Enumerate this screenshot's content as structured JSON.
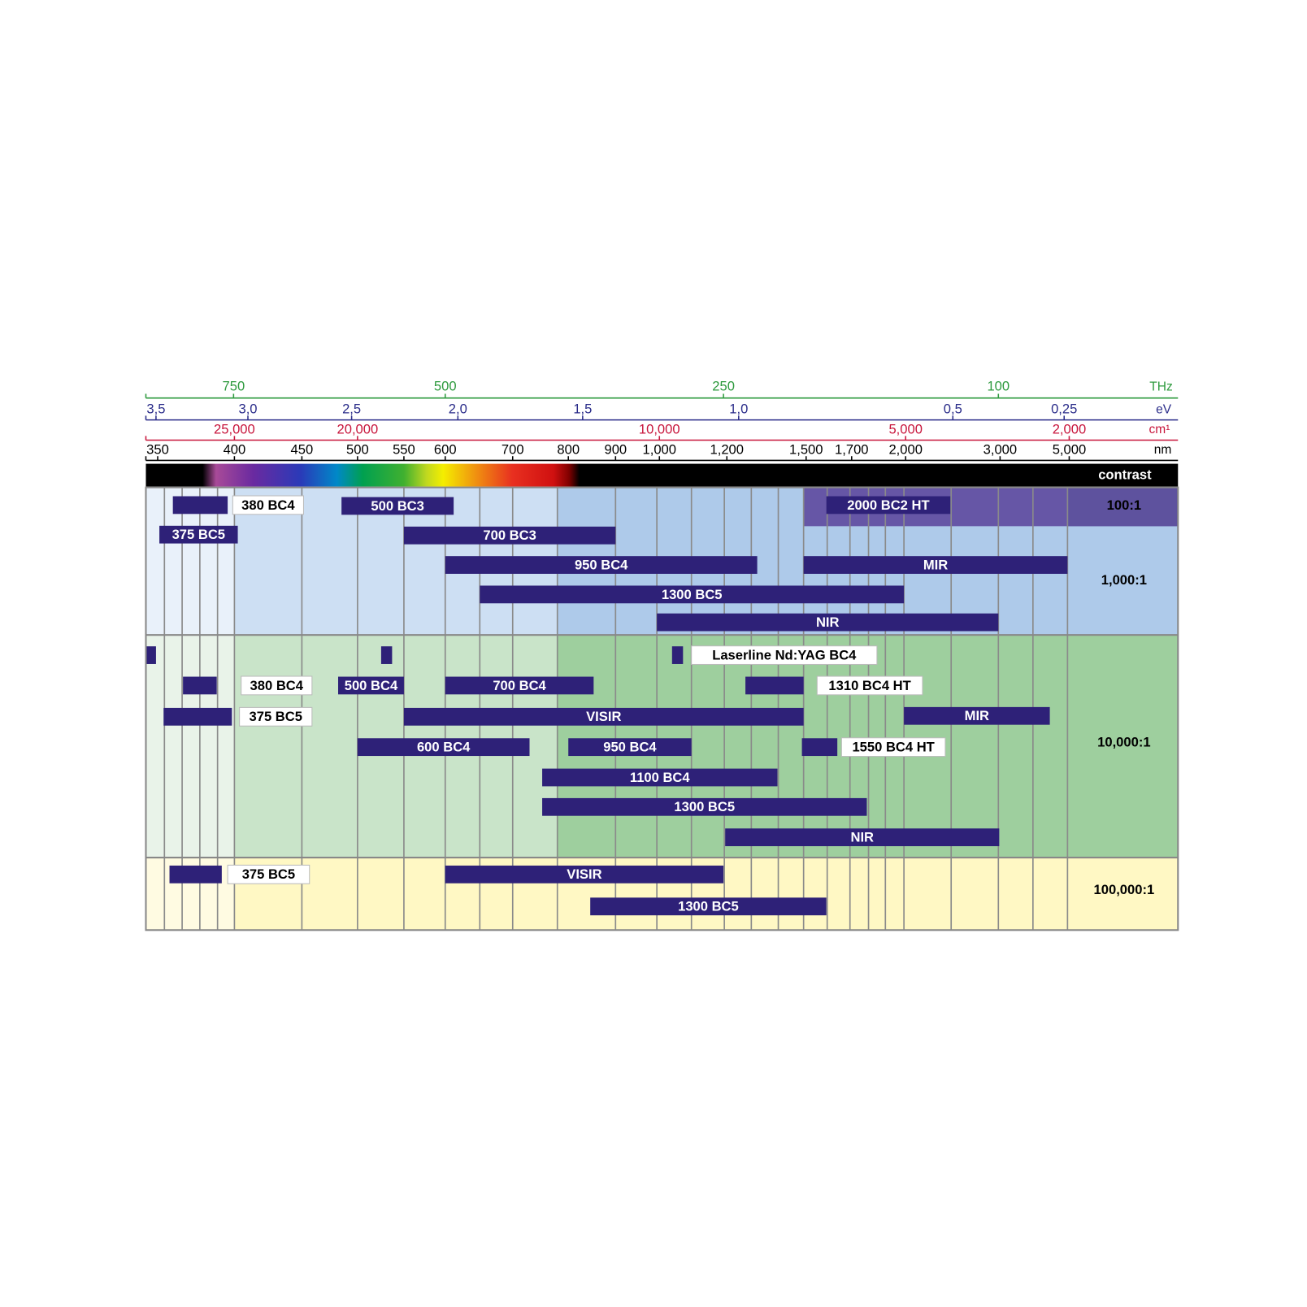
{
  "axes": {
    "frequency": {
      "unit": "THz",
      "ticks": [
        "750",
        "500",
        "250",
        "100"
      ]
    },
    "energy": {
      "unit": "eV",
      "ticks": [
        "3,5",
        "3,0",
        "2,5",
        "2,0",
        "1,5",
        "1,0",
        "0,5",
        "0,25"
      ]
    },
    "wavenumber": {
      "unit": "cm¹",
      "ticks": [
        "25,000",
        "20,000",
        "10,000",
        "5,000",
        "2,000"
      ]
    },
    "wavelength": {
      "unit": "nm",
      "ticks": [
        "350",
        "400",
        "450",
        "500",
        "550",
        "600",
        "700",
        "800",
        "900",
        "1,000",
        "1,200",
        "1,500",
        "1,700",
        "2,000",
        "3,000",
        "5,000"
      ]
    }
  },
  "spectrum": {
    "label": "contrast"
  },
  "sections": [
    {
      "contrast": [
        "100:1",
        "1,000:1"
      ],
      "products": [
        "380 BC4",
        "500 BC3",
        "2000 BC2 HT",
        "375 BC5",
        "700 BC3",
        "950 BC4",
        "MIR",
        "1300 BC5",
        "NIR"
      ]
    },
    {
      "contrast": [
        "10,000:1"
      ],
      "products": [
        "Laserline Nd:YAG BC4",
        "380 BC4",
        "500 BC4",
        "700 BC4",
        "1310 BC4 HT",
        "375 BC5",
        "VISIR",
        "MIR",
        "600 BC4",
        "950 BC4",
        "1550 BC4 HT",
        "1100 BC4",
        "1300 BC5",
        "NIR"
      ]
    },
    {
      "contrast": [
        "100,000:1"
      ],
      "products": [
        "375 BC5",
        "VISIR",
        "1300 BC5"
      ]
    }
  ]
}
